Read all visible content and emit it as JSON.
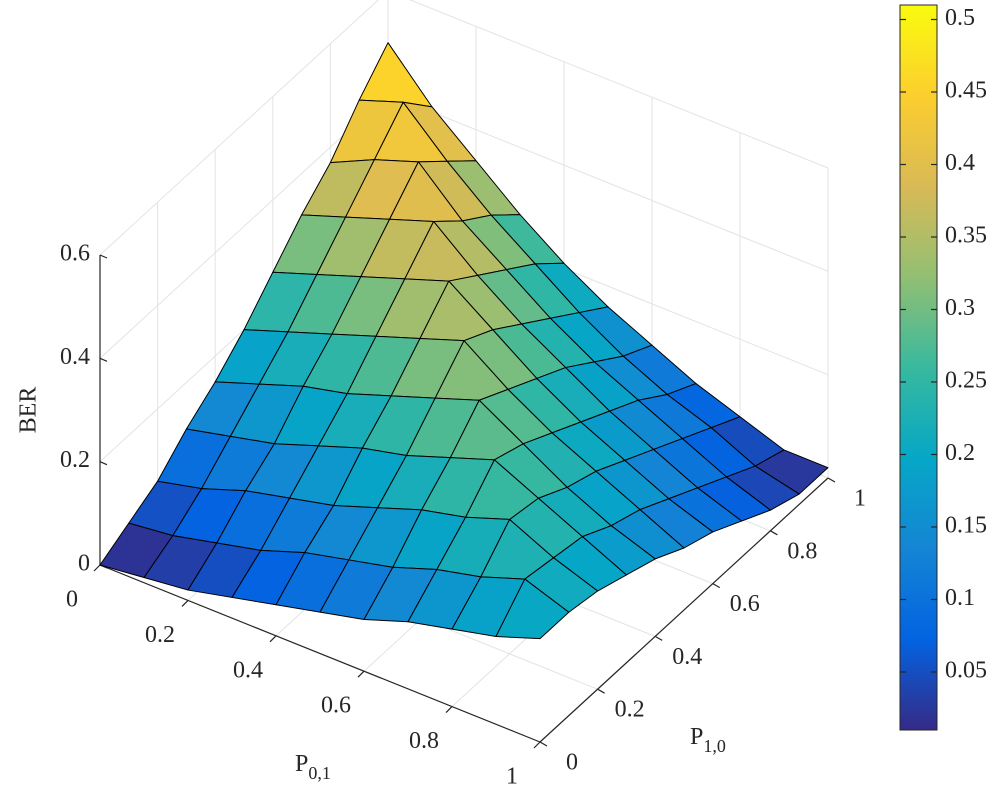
{
  "chart_data": {
    "type": "surface",
    "xlabel": "P",
    "xlabel_sub": "0,1",
    "ylabel": "P",
    "ylabel_sub": "1,0",
    "zlabel": "BER",
    "x": [
      0,
      0.1,
      0.2,
      0.3,
      0.4,
      0.5,
      0.6,
      0.7,
      0.8,
      0.9,
      1
    ],
    "y": [
      0,
      0.1,
      0.2,
      0.3,
      0.4,
      0.5,
      0.6,
      0.7,
      0.8,
      0.9,
      1
    ],
    "z": [
      [
        0,
        0.01,
        0.02,
        0.04,
        0.06,
        0.08,
        0.1,
        0.13,
        0.15,
        0.17,
        0.2
      ],
      [
        0.03,
        0.04,
        0.06,
        0.08,
        0.11,
        0.13,
        0.15,
        0.18,
        0.2,
        0.23,
        0.2
      ],
      [
        0.06,
        0.08,
        0.11,
        0.13,
        0.15,
        0.18,
        0.21,
        0.23,
        0.26,
        0.22,
        0.19
      ],
      [
        0.11,
        0.13,
        0.15,
        0.18,
        0.21,
        0.23,
        0.26,
        0.29,
        0.25,
        0.21,
        0.17
      ],
      [
        0.15,
        0.18,
        0.21,
        0.23,
        0.26,
        0.29,
        0.32,
        0.27,
        0.22,
        0.18,
        0.15
      ],
      [
        0.2,
        0.23,
        0.26,
        0.29,
        0.32,
        0.35,
        0.29,
        0.24,
        0.2,
        0.16,
        0.12
      ],
      [
        0.26,
        0.29,
        0.32,
        0.35,
        0.38,
        0.32,
        0.26,
        0.21,
        0.17,
        0.13,
        0.1
      ],
      [
        0.32,
        0.35,
        0.38,
        0.41,
        0.34,
        0.28,
        0.23,
        0.18,
        0.14,
        0.1,
        0.07
      ],
      [
        0.37,
        0.41,
        0.44,
        0.36,
        0.3,
        0.24,
        0.19,
        0.15,
        0.11,
        0.07,
        0.04
      ],
      [
        0.44,
        0.47,
        0.39,
        0.32,
        0.26,
        0.2,
        0.15,
        0.11,
        0.08,
        0.04,
        0.02
      ],
      [
        0.5,
        0.41,
        0.34,
        0.27,
        0.21,
        0.16,
        0.12,
        0.08,
        0.05,
        0.02,
        0.02
      ]
    ],
    "xlim": [
      0,
      1
    ],
    "ylim": [
      0,
      1
    ],
    "zlim": [
      0,
      0.6
    ],
    "xticks": [
      0,
      0.2,
      0.4,
      0.6,
      0.8,
      1
    ],
    "yticks": [
      0,
      0.2,
      0.4,
      0.6,
      0.8,
      1
    ],
    "zticks": [
      0,
      0.2,
      0.4,
      0.6
    ],
    "grid": true,
    "colormap": [
      "#352a87",
      "#0363e1",
      "#1485d4",
      "#06a7c6",
      "#38b99e",
      "#92bf73",
      "#d9ba56",
      "#fcce2e",
      "#f9fb0e"
    ],
    "clim": [
      0.01,
      0.51
    ],
    "colorbar_ticks": [
      0.05,
      0.1,
      0.15,
      0.2,
      0.25,
      0.3,
      0.35,
      0.4,
      0.45,
      0.5
    ]
  }
}
